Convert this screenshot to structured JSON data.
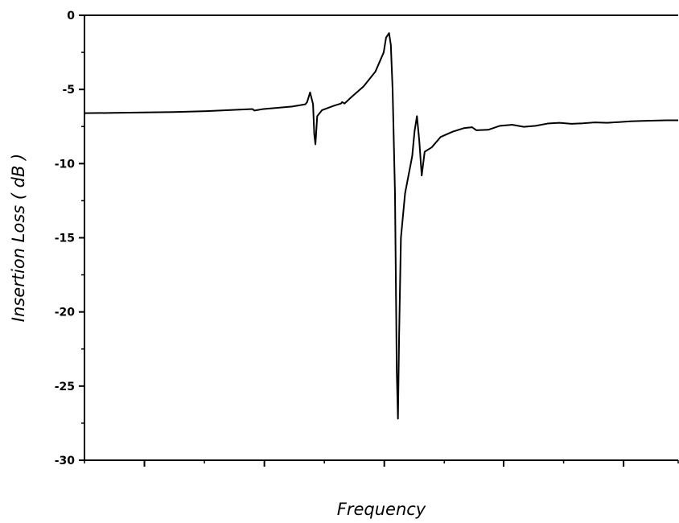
{
  "chart_data": {
    "type": "line",
    "title": "",
    "xlabel": "Frequency",
    "ylabel": "Insertion Loss ( dB )",
    "xlim": [
      0,
      100
    ],
    "ylim": [
      -30,
      0
    ],
    "yticks": [
      {
        "value": 0,
        "label": "0"
      },
      {
        "value": -5,
        "label": "-5"
      },
      {
        "value": -10,
        "label": "-10"
      },
      {
        "value": -15,
        "label": "-15"
      },
      {
        "value": -20,
        "label": "-20"
      },
      {
        "value": -25,
        "label": "-25"
      },
      {
        "value": -30,
        "label": "-30"
      }
    ],
    "xticks_major": [
      10.1,
      30.3,
      50.5,
      70.6,
      90.8
    ],
    "xticks_minor": [
      0,
      20.2,
      40.4,
      60.6,
      80.7,
      100
    ],
    "grid": false,
    "legend": "none",
    "line_color": "#000000",
    "series": [
      {
        "x": [
          0,
          5,
          10,
          15,
          20,
          25,
          28.3,
          28.6,
          30,
          35,
          37.2,
          37.5,
          38.0,
          38.5,
          38.7,
          38.9,
          39.2,
          40,
          42,
          43.2,
          43.4,
          43.8,
          45,
          47,
          49,
          50.4,
          50.8,
          51.3,
          51.6,
          51.9,
          52.3,
          52.6,
          52.8,
          53.0,
          53.3,
          54,
          55.2,
          55.6,
          56.0,
          56.4,
          56.8,
          57.3,
          58.5,
          60,
          62,
          64,
          65.3,
          66,
          68,
          70,
          72,
          74,
          76,
          78,
          80,
          82,
          84,
          86,
          88,
          90,
          92,
          94,
          96,
          98,
          100
        ],
        "y": [
          -6.6,
          -6.58,
          -6.55,
          -6.52,
          -6.47,
          -6.38,
          -6.32,
          -6.42,
          -6.33,
          -6.15,
          -6.0,
          -5.85,
          -5.2,
          -6.0,
          -8.0,
          -8.7,
          -6.8,
          -6.4,
          -6.1,
          -5.95,
          -5.85,
          -5.95,
          -5.5,
          -4.8,
          -3.8,
          -2.5,
          -1.5,
          -1.2,
          -2.0,
          -5.0,
          -12.0,
          -24.0,
          -27.2,
          -21.5,
          -15.0,
          -12.0,
          -9.5,
          -7.8,
          -6.8,
          -8.5,
          -10.8,
          -9.2,
          -8.9,
          -8.2,
          -7.85,
          -7.6,
          -7.55,
          -7.75,
          -7.72,
          -7.45,
          -7.38,
          -7.52,
          -7.45,
          -7.3,
          -7.25,
          -7.32,
          -7.28,
          -7.22,
          -7.25,
          -7.2,
          -7.15,
          -7.12,
          -7.1,
          -7.08,
          -7.08
        ]
      }
    ]
  }
}
